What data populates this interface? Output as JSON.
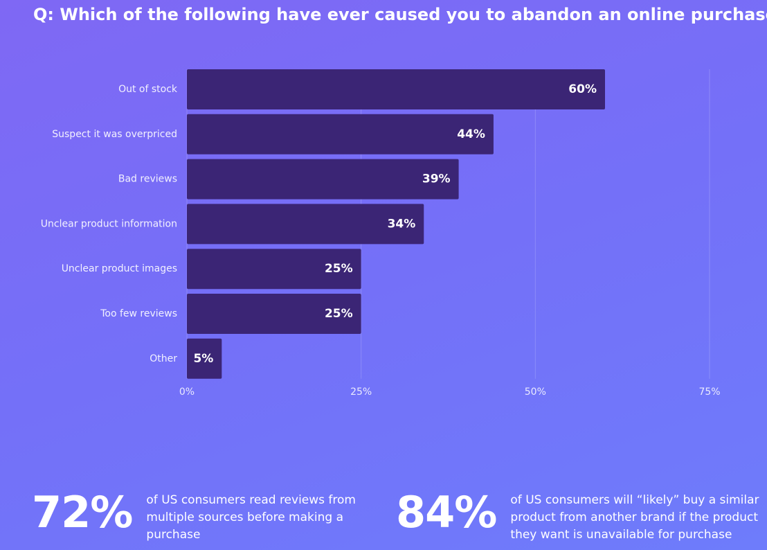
{
  "chart_data": {
    "type": "bar",
    "orientation": "horizontal",
    "title": "Q: Which of the following have ever caused you to abandon an online purchase?",
    "categories": [
      "Out of stock",
      "Suspect it was overpriced",
      "Bad reviews",
      "Unclear product information",
      "Unclear product images",
      "Too few reviews",
      "Other"
    ],
    "values": [
      60,
      44,
      39,
      34,
      25,
      25,
      5
    ],
    "value_labels": [
      "60%",
      "44%",
      "39%",
      "34%",
      "25%",
      "25%",
      "5%"
    ],
    "color": "#3b2575",
    "xlim": [
      0,
      75
    ],
    "xticks": [
      {
        "value": 0,
        "label": "0%"
      },
      {
        "value": 25,
        "label": "25%"
      },
      {
        "value": 50,
        "label": "50%"
      },
      {
        "value": 75,
        "label": "75%"
      }
    ],
    "grid": true
  },
  "stats": [
    {
      "figure": "72%",
      "text": "of US consumers read reviews from multiple sources before making a purchase"
    },
    {
      "figure": "84%",
      "text": "of US consumers will “likely” buy a similar product from another brand if the product they want is unavailable for purchase"
    }
  ]
}
